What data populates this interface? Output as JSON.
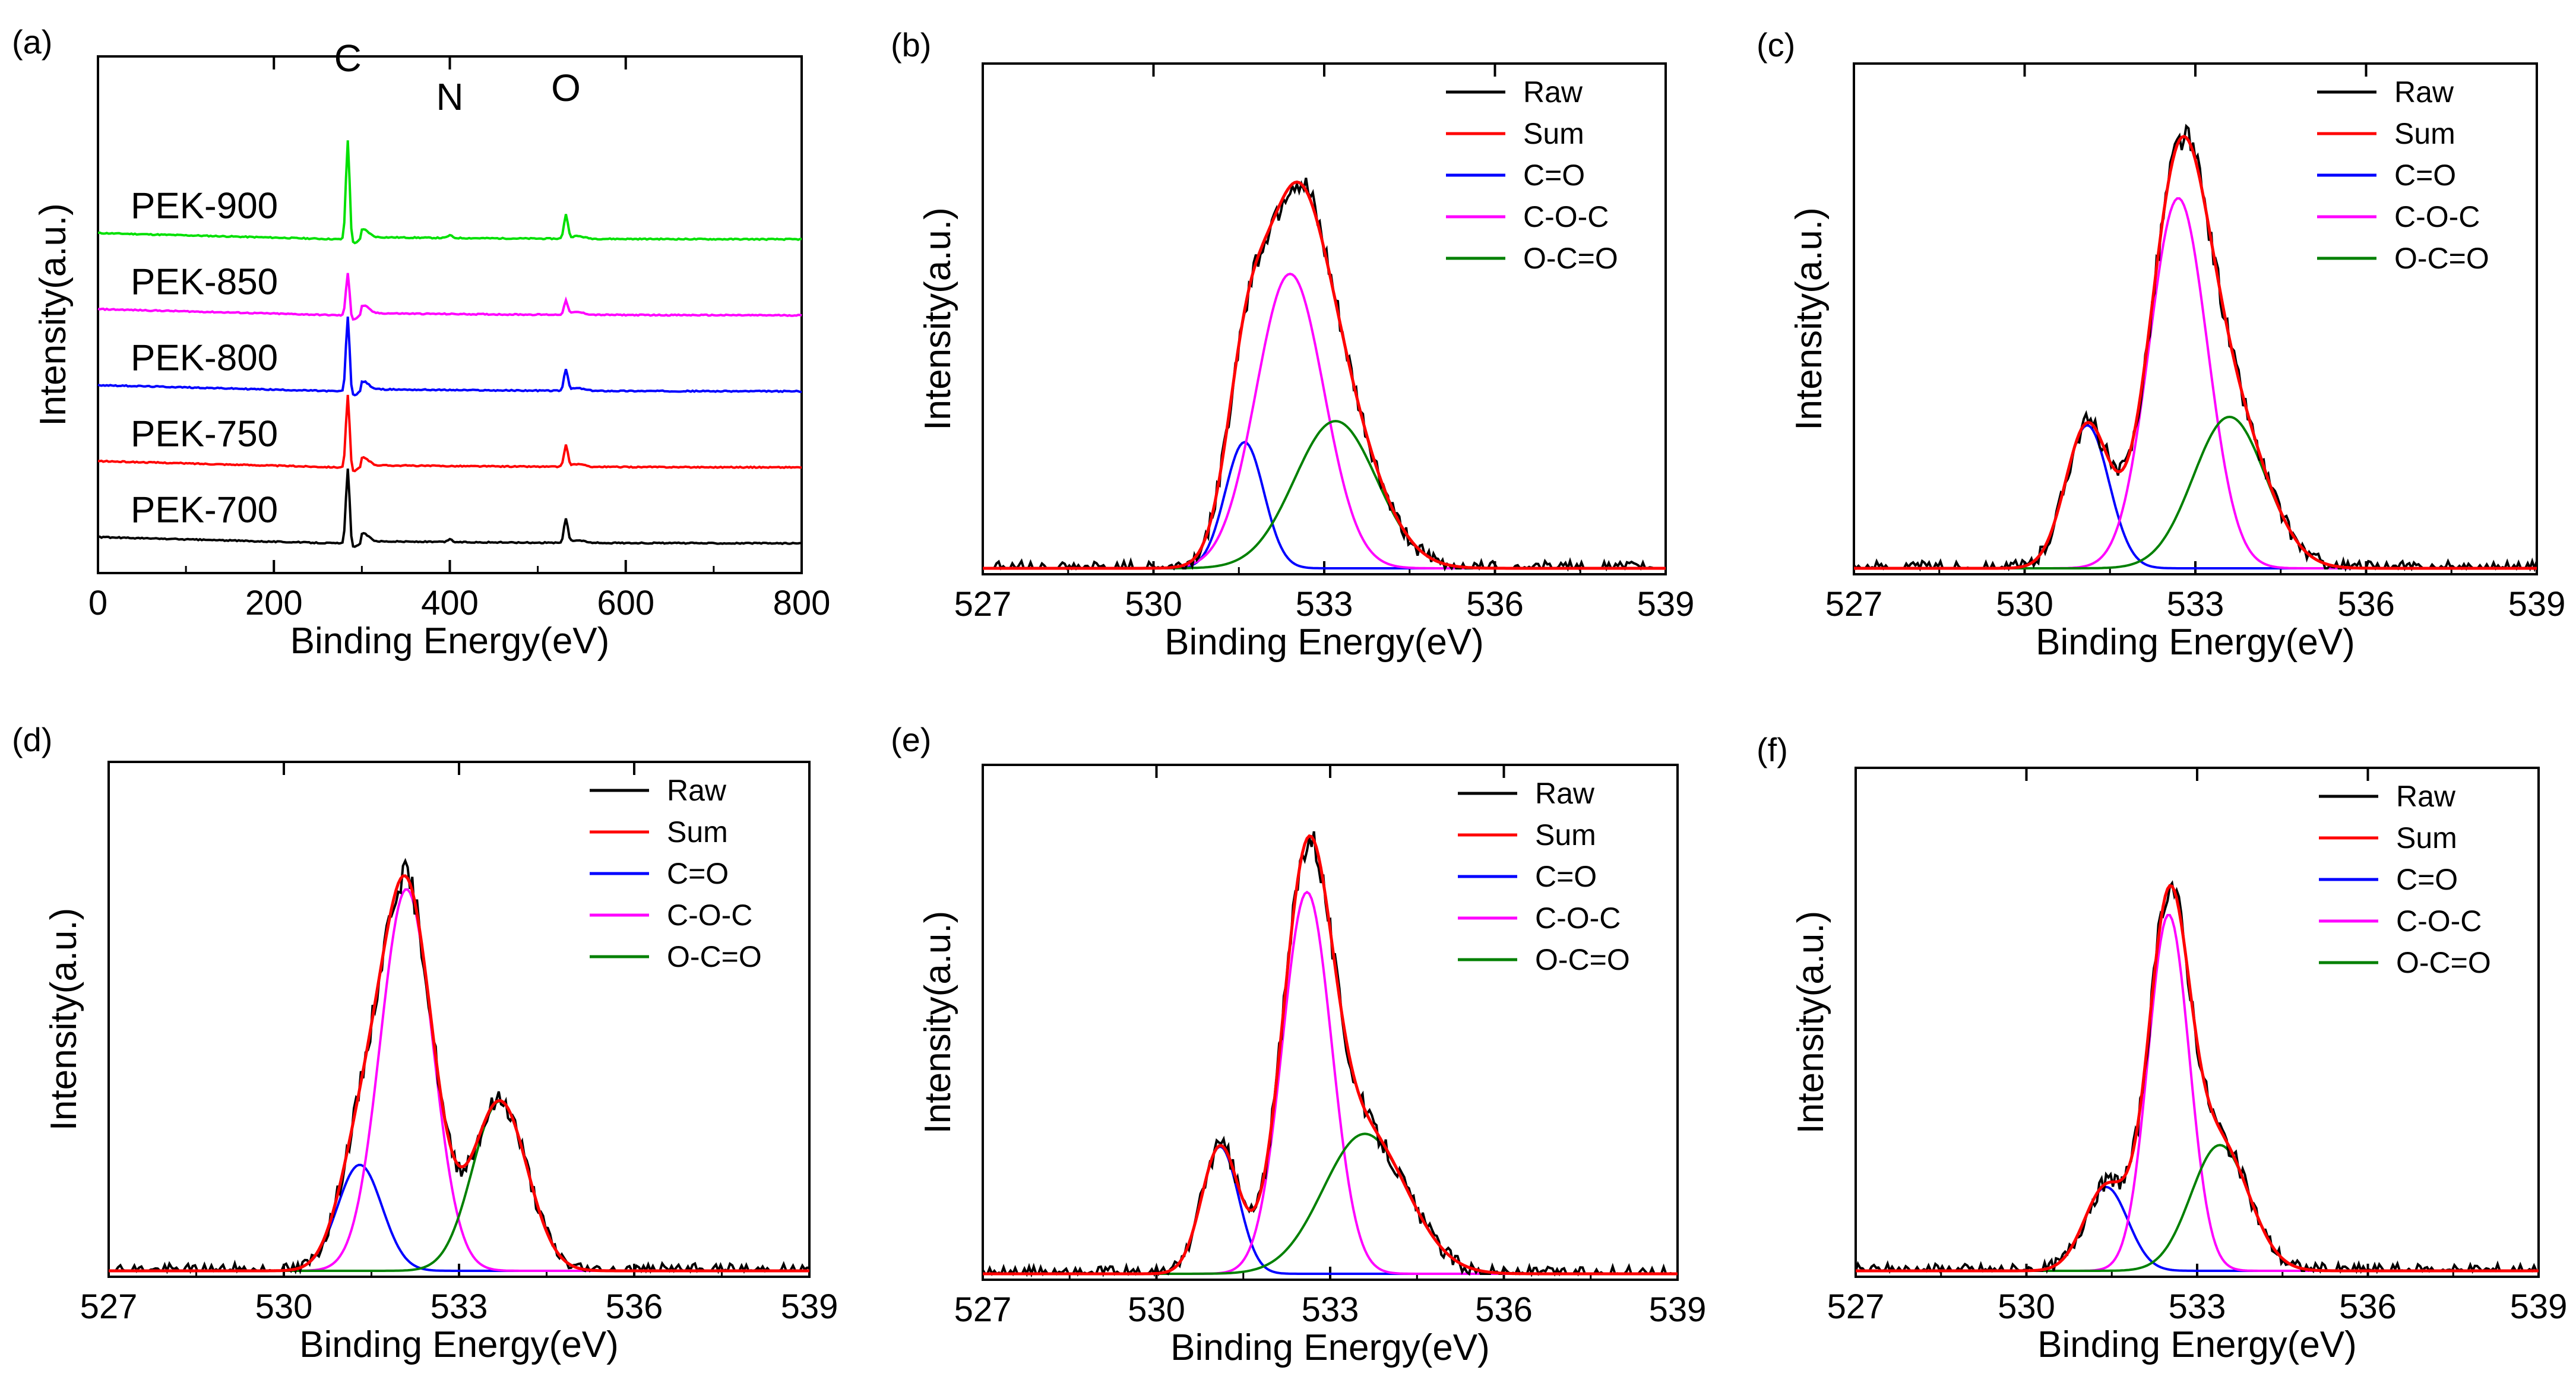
{
  "chart_data": [
    {
      "panel": "(a)",
      "type": "line",
      "xlabel": "Binding Energy(eV)",
      "ylabel": "Intensity(a.u.)",
      "xlim": [
        0,
        800
      ],
      "xticks": [
        "0",
        "200",
        "400",
        "600",
        "800"
      ],
      "y_ticks_shown": false,
      "peak_labels": [
        {
          "text": "C",
          "x": 284
        },
        {
          "text": "N",
          "x": 400
        },
        {
          "text": "O",
          "x": 532
        }
      ],
      "series": [
        {
          "name": "PEK-900",
          "color": "#00e000",
          "offset": 4,
          "c_peak": 1.8,
          "n_peak": 0.05,
          "o_peak": 0.45
        },
        {
          "name": "PEK-850",
          "color": "#ff00ff",
          "offset": 3,
          "c_peak": 0.75,
          "n_peak": 0.0,
          "o_peak": 0.25
        },
        {
          "name": "PEK-800",
          "color": "#0000ff",
          "offset": 2,
          "c_peak": 1.35,
          "n_peak": 0.0,
          "o_peak": 0.4
        },
        {
          "name": "PEK-750",
          "color": "#ff0000",
          "offset": 1,
          "c_peak": 1.3,
          "n_peak": 0.0,
          "o_peak": 0.4
        },
        {
          "name": "PEK-700",
          "color": "#000000",
          "offset": 0,
          "c_peak": 1.35,
          "n_peak": 0.05,
          "o_peak": 0.45
        }
      ]
    },
    {
      "panel": "(b)",
      "type": "line",
      "xlabel": "Binding Energy(eV)",
      "ylabel": "Intensity(a.u.)",
      "xlim": [
        527,
        539
      ],
      "xticks": [
        "527",
        "530",
        "533",
        "536",
        "539"
      ],
      "ylim": [
        0,
        1.2
      ],
      "legend": [
        "Raw",
        "Sum",
        "C=O",
        "C-O-C",
        "O-C=O"
      ],
      "legend_position": "top-right",
      "components": [
        {
          "name": "C=O",
          "color": "#0000ff",
          "center": 531.6,
          "height": 0.3,
          "width": 0.8
        },
        {
          "name": "C-O-C",
          "color": "#ff00ff",
          "center": 532.4,
          "height": 0.7,
          "width": 1.4
        },
        {
          "name": "O-C=O",
          "color": "#008000",
          "center": 533.2,
          "height": 0.35,
          "width": 1.7
        }
      ]
    },
    {
      "panel": "(c)",
      "type": "line",
      "xlabel": "Binding Energy(eV)",
      "ylabel": "Intensity(a.u.)",
      "xlim": [
        527,
        539
      ],
      "xticks": [
        "527",
        "530",
        "533",
        "536",
        "539"
      ],
      "ylim": [
        0,
        1.2
      ],
      "legend": [
        "Raw",
        "Sum",
        "C=O",
        "C-O-C",
        "O-C=O"
      ],
      "legend_position": "top-right",
      "components": [
        {
          "name": "C=O",
          "color": "#0000ff",
          "center": 531.1,
          "height": 0.34,
          "width": 0.9
        },
        {
          "name": "C-O-C",
          "color": "#ff00ff",
          "center": 532.7,
          "height": 0.88,
          "width": 1.2
        },
        {
          "name": "O-C=O",
          "color": "#008000",
          "center": 533.6,
          "height": 0.36,
          "width": 1.5
        }
      ]
    },
    {
      "panel": "(d)",
      "type": "line",
      "xlabel": "Binding Energy(eV)",
      "ylabel": "Intensity(a.u.)",
      "xlim": [
        527,
        539
      ],
      "xticks": [
        "527",
        "530",
        "533",
        "536",
        "539"
      ],
      "ylim": [
        0,
        1.2
      ],
      "legend": [
        "Raw",
        "Sum",
        "C=O",
        "C-O-C",
        "O-C=O"
      ],
      "legend_position": "top-right",
      "components": [
        {
          "name": "C=O",
          "color": "#0000ff",
          "center": 531.3,
          "height": 0.25,
          "width": 0.9
        },
        {
          "name": "C-O-C",
          "color": "#ff00ff",
          "center": 532.1,
          "height": 0.9,
          "width": 1.05
        },
        {
          "name": "O-C=O",
          "color": "#008000",
          "center": 533.7,
          "height": 0.4,
          "width": 1.1
        }
      ]
    },
    {
      "panel": "(e)",
      "type": "line",
      "xlabel": "Binding Energy(eV)",
      "ylabel": "Intensity(a.u.)",
      "xlim": [
        527,
        539
      ],
      "xticks": [
        "527",
        "530",
        "533",
        "536",
        "539"
      ],
      "ylim": [
        0,
        1.2
      ],
      "legend": [
        "Raw",
        "Sum",
        "C=O",
        "C-O-C",
        "O-C=O"
      ],
      "legend_position": "top-right",
      "components": [
        {
          "name": "C=O",
          "color": "#0000ff",
          "center": 531.1,
          "height": 0.3,
          "width": 0.75
        },
        {
          "name": "C-O-C",
          "color": "#ff00ff",
          "center": 532.6,
          "height": 0.9,
          "width": 1.0
        },
        {
          "name": "O-C=O",
          "color": "#008000",
          "center": 533.6,
          "height": 0.33,
          "width": 1.7
        }
      ]
    },
    {
      "panel": "(f)",
      "type": "line",
      "xlabel": "Binding Energy(eV)",
      "ylabel": "Intensity(a.u.)",
      "xlim": [
        527,
        539
      ],
      "xticks": [
        "527",
        "530",
        "533",
        "536",
        "539"
      ],
      "ylim": [
        0,
        1.2
      ],
      "legend": [
        "Raw",
        "Sum",
        "C=O",
        "C-O-C",
        "O-C=O"
      ],
      "legend_position": "top-right",
      "components": [
        {
          "name": "C=O",
          "color": "#0000ff",
          "center": 531.4,
          "height": 0.2,
          "width": 0.9
        },
        {
          "name": "C-O-C",
          "color": "#ff00ff",
          "center": 532.5,
          "height": 0.85,
          "width": 0.85
        },
        {
          "name": "O-C=O",
          "color": "#008000",
          "center": 533.4,
          "height": 0.3,
          "width": 1.2
        }
      ]
    }
  ],
  "style": {
    "raw_color": "#000000",
    "sum_color": "#ff0000"
  }
}
